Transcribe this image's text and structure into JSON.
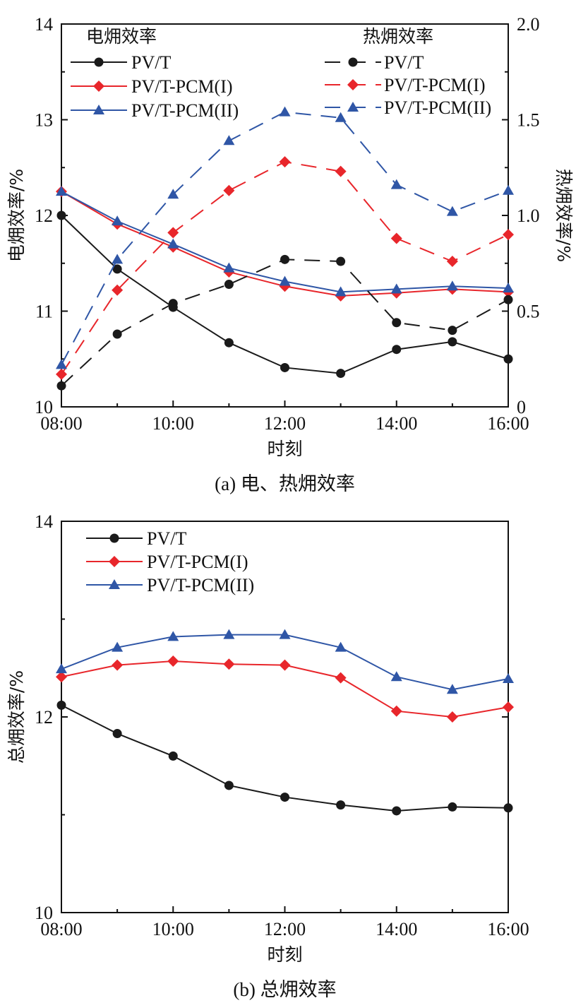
{
  "chart_data": [
    {
      "type": "line",
      "caption": "(a) 电、热㶲效率",
      "xlabel": "时刻",
      "ylabel": "电㶲效率/%",
      "y2label": "热㶲效率/%",
      "ylim": [
        10,
        14
      ],
      "y2lim": [
        0,
        2.0
      ],
      "xlim": [
        8,
        16
      ],
      "x_tick_labels": [
        "08:00",
        "10:00",
        "12:00",
        "14:00",
        "16:00"
      ],
      "y_tick_labels": [
        "10",
        "11",
        "12",
        "13",
        "14"
      ],
      "y2_tick_labels": [
        "0",
        "0.5",
        "1.0",
        "1.5",
        "2.0"
      ],
      "grid": false,
      "legend_left_title": "电㶲效率",
      "legend_right_title": "热㶲效率",
      "x": [
        8,
        9,
        10,
        11,
        12,
        13,
        14,
        15,
        16
      ],
      "series": [
        {
          "name": "PV/T",
          "axis": "left",
          "style": "solid",
          "marker": "circle",
          "color": "#1a1a1a",
          "values": [
            12.0,
            11.44,
            11.04,
            10.67,
            10.41,
            10.35,
            10.6,
            10.68,
            10.5
          ]
        },
        {
          "name": "PV/T-PCM(I)",
          "axis": "left",
          "style": "solid",
          "marker": "diamond",
          "color": "#e8262b",
          "values": [
            12.25,
            11.91,
            11.67,
            11.41,
            11.26,
            11.16,
            11.19,
            11.23,
            11.2
          ]
        },
        {
          "name": "PV/T-PCM(II)",
          "axis": "left",
          "style": "solid",
          "marker": "triangle",
          "color": "#2f56a6",
          "values": [
            12.25,
            11.94,
            11.7,
            11.45,
            11.31,
            11.2,
            11.23,
            11.26,
            11.24
          ]
        },
        {
          "name": "PV/T",
          "axis": "right",
          "style": "dashed",
          "marker": "circle",
          "color": "#1a1a1a",
          "values": [
            0.11,
            0.38,
            0.54,
            0.64,
            0.77,
            0.76,
            0.44,
            0.4,
            0.56
          ]
        },
        {
          "name": "PV/T-PCM(I)",
          "axis": "right",
          "style": "dashed",
          "marker": "diamond",
          "color": "#e8262b",
          "values": [
            0.17,
            0.61,
            0.91,
            1.13,
            1.28,
            1.23,
            0.88,
            0.76,
            0.9
          ]
        },
        {
          "name": "PV/T-PCM(II)",
          "axis": "right",
          "style": "dashed",
          "marker": "triangle",
          "color": "#2f56a6",
          "values": [
            0.22,
            0.77,
            1.11,
            1.39,
            1.54,
            1.51,
            1.16,
            1.02,
            1.13
          ]
        }
      ]
    },
    {
      "type": "line",
      "caption": "(b) 总㶲效率",
      "xlabel": "时刻",
      "ylabel": "总㶲效率/%",
      "ylim": [
        10,
        14
      ],
      "xlim": [
        8,
        16
      ],
      "x_tick_labels": [
        "08:00",
        "10:00",
        "12:00",
        "14:00",
        "16:00"
      ],
      "y_tick_labels": [
        "10",
        "12",
        "14"
      ],
      "grid": false,
      "x": [
        8,
        9,
        10,
        11,
        12,
        13,
        14,
        15,
        16
      ],
      "series": [
        {
          "name": "PV/T",
          "style": "solid",
          "marker": "circle",
          "color": "#1a1a1a",
          "values": [
            12.12,
            11.83,
            11.6,
            11.3,
            11.18,
            11.1,
            11.04,
            11.08,
            11.07
          ]
        },
        {
          "name": "PV/T-PCM(I)",
          "style": "solid",
          "marker": "diamond",
          "color": "#e8262b",
          "values": [
            12.41,
            12.53,
            12.57,
            12.54,
            12.53,
            12.4,
            12.06,
            12.0,
            12.1
          ]
        },
        {
          "name": "PV/T-PCM(II)",
          "style": "solid",
          "marker": "triangle",
          "color": "#2f56a6",
          "values": [
            12.49,
            12.71,
            12.82,
            12.84,
            12.84,
            12.71,
            12.41,
            12.28,
            12.39
          ]
        }
      ]
    }
  ]
}
